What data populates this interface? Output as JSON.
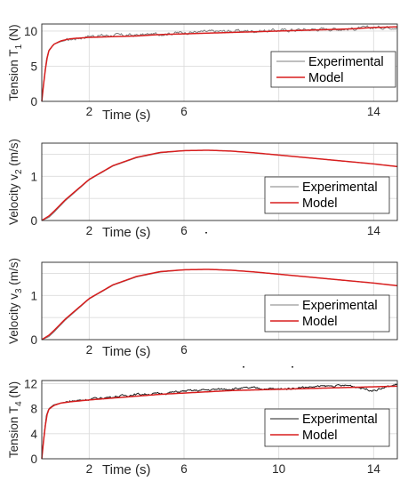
{
  "colors": {
    "experimental": "#7f7f7f",
    "experimental_dark": "#1e1e1e",
    "model": "#d81e1e",
    "axes": "#262626",
    "grid": "#dcdcdc"
  },
  "chart_data": [
    {
      "type": "line",
      "ylabel_main": "Tension T",
      "ylabel_sub": "1",
      "ylabel_unit": " (N)",
      "xlabel": "Time (s)",
      "xlim": [
        0,
        15
      ],
      "ylim": [
        0,
        11
      ],
      "xtick_labels": [
        {
          "x": 2,
          "label": "2"
        },
        {
          "x": 6,
          "label": "6"
        },
        {
          "x": 14,
          "label": "14"
        }
      ],
      "ytick_labels": [
        {
          "y": 0,
          "label": "0"
        },
        {
          "y": 5,
          "label": "5"
        },
        {
          "y": 10,
          "label": "10"
        }
      ],
      "xgrid": [
        2,
        6,
        10,
        14
      ],
      "ygrid": [
        5,
        10
      ],
      "legend": [
        "Experimental",
        "Model"
      ],
      "legend_position": "right",
      "series": [
        {
          "name": "Experimental",
          "style": "noisy-light",
          "x": [
            0,
            0.1,
            0.2,
            0.3,
            0.5,
            0.8,
            1.2,
            2,
            3,
            4,
            5,
            6,
            7,
            8,
            9,
            10,
            11,
            12,
            13,
            14,
            15
          ],
          "y": [
            0,
            3.4,
            6.0,
            7.3,
            8.1,
            8.5,
            8.8,
            9.3,
            9.4,
            9.4,
            9.6,
            9.8,
            9.9,
            10.0,
            10.0,
            10.1,
            10.2,
            10.3,
            10.3,
            10.5,
            10.6
          ]
        },
        {
          "name": "Model",
          "x": [
            0,
            0.1,
            0.2,
            0.3,
            0.5,
            0.8,
            1.2,
            2,
            3,
            4,
            5,
            6,
            7,
            8,
            9,
            10,
            11,
            12,
            13,
            14,
            15
          ],
          "y": [
            0,
            3.2,
            5.8,
            7.2,
            8.1,
            8.6,
            8.9,
            9.1,
            9.2,
            9.3,
            9.5,
            9.6,
            9.7,
            9.8,
            9.9,
            10.0,
            10.1,
            10.2,
            10.3,
            10.5,
            10.6
          ]
        }
      ]
    },
    {
      "type": "line",
      "ylabel_main": "Velocity v",
      "ylabel_sub": "2",
      "ylabel_unit": " (m/s)",
      "xlabel": "Time (s)",
      "xlim": [
        0,
        15
      ],
      "ylim": [
        0,
        1.75
      ],
      "xtick_labels": [
        {
          "x": 2,
          "label": "2"
        },
        {
          "x": 6,
          "label": "6"
        },
        {
          "x": 14,
          "label": "14"
        }
      ],
      "ytick_labels": [
        {
          "y": 0,
          "label": "0"
        },
        {
          "y": 1,
          "label": "1"
        }
      ],
      "xgrid": [
        2,
        6,
        10,
        14
      ],
      "ygrid": [
        0.5,
        1,
        1.5
      ],
      "legend": [
        "Experimental",
        "Model"
      ],
      "legend_position": "right",
      "series": [
        {
          "name": "Experimental",
          "x": [
            0,
            0.3,
            0.5,
            1,
            2,
            3,
            4,
            5,
            6,
            7,
            8,
            9,
            10,
            11,
            12,
            13,
            14,
            15
          ],
          "y": [
            0,
            0.07,
            0.17,
            0.45,
            0.92,
            1.23,
            1.42,
            1.53,
            1.58,
            1.59,
            1.57,
            1.53,
            1.48,
            1.43,
            1.38,
            1.33,
            1.28,
            1.22
          ]
        },
        {
          "name": "Model",
          "x": [
            0,
            0.3,
            0.5,
            1,
            2,
            3,
            4,
            5,
            6,
            7,
            8,
            9,
            10,
            11,
            12,
            13,
            14,
            15
          ],
          "y": [
            0,
            0.1,
            0.2,
            0.47,
            0.93,
            1.24,
            1.43,
            1.54,
            1.58,
            1.59,
            1.57,
            1.53,
            1.48,
            1.43,
            1.38,
            1.33,
            1.28,
            1.22
          ]
        }
      ]
    },
    {
      "type": "line",
      "ylabel_main": "Velocity v",
      "ylabel_sub": "3",
      "ylabel_unit": " (m/s)",
      "xlabel": "Time (s)",
      "xlim": [
        0,
        15
      ],
      "ylim": [
        0,
        1.75
      ],
      "xtick_labels": [
        {
          "x": 2,
          "label": "2"
        },
        {
          "x": 6,
          "label": "6"
        }
      ],
      "ytick_labels": [
        {
          "y": 0,
          "label": "0"
        },
        {
          "y": 1,
          "label": "1"
        }
      ],
      "xgrid": [
        2,
        6,
        10,
        14
      ],
      "ygrid": [
        0.5,
        1,
        1.5
      ],
      "legend": [
        "Experimental",
        "Model"
      ],
      "legend_position": "right",
      "series": [
        {
          "name": "Experimental",
          "x": [
            0,
            0.3,
            0.5,
            1,
            2,
            3,
            4,
            5,
            6,
            7,
            8,
            9,
            10,
            11,
            12,
            13,
            14,
            15
          ],
          "y": [
            0,
            0.07,
            0.17,
            0.45,
            0.92,
            1.23,
            1.42,
            1.53,
            1.58,
            1.59,
            1.57,
            1.53,
            1.48,
            1.43,
            1.38,
            1.33,
            1.28,
            1.22
          ]
        },
        {
          "name": "Model",
          "x": [
            0,
            0.3,
            0.5,
            1,
            2,
            3,
            4,
            5,
            6,
            7,
            8,
            9,
            10,
            11,
            12,
            13,
            14,
            15
          ],
          "y": [
            0,
            0.1,
            0.2,
            0.47,
            0.93,
            1.24,
            1.43,
            1.54,
            1.58,
            1.59,
            1.57,
            1.53,
            1.48,
            1.43,
            1.38,
            1.33,
            1.28,
            1.22
          ]
        }
      ]
    },
    {
      "type": "line",
      "ylabel_main": "Tension T",
      "ylabel_sub": "4",
      "ylabel_unit": " (N)",
      "xlabel": "Time (s)",
      "xlim": [
        0,
        15
      ],
      "ylim": [
        0,
        12.5
      ],
      "xtick_labels": [
        {
          "x": 2,
          "label": "2"
        },
        {
          "x": 6,
          "label": "6"
        },
        {
          "x": 10,
          "label": "10"
        },
        {
          "x": 14,
          "label": "14"
        }
      ],
      "ytick_labels": [
        {
          "y": 0,
          "label": "0"
        },
        {
          "y": 4,
          "label": "4"
        },
        {
          "y": 8,
          "label": "8"
        },
        {
          "y": 12,
          "label": "12"
        }
      ],
      "xgrid": [
        2,
        6,
        10,
        14
      ],
      "ygrid": [
        4,
        8,
        12
      ],
      "legend": [
        "Experimental",
        "Model"
      ],
      "legend_position": "right",
      "series": [
        {
          "name": "Experimental",
          "style": "noisy-dark",
          "x": [
            0,
            0.1,
            0.2,
            0.3,
            0.5,
            0.8,
            1.2,
            2,
            3,
            4,
            5,
            6,
            7,
            8,
            9,
            10,
            11,
            12,
            13,
            14,
            15
          ],
          "y": [
            0,
            4.0,
            7.0,
            8.0,
            8.6,
            8.9,
            9.2,
            9.5,
            9.9,
            10.3,
            10.4,
            10.8,
            11.0,
            11.2,
            11.3,
            11.1,
            11.4,
            11.6,
            11.7,
            10.9,
            11.9
          ]
        },
        {
          "name": "Model",
          "x": [
            0,
            0.1,
            0.2,
            0.3,
            0.5,
            0.8,
            1.2,
            2,
            3,
            4,
            5,
            6,
            7,
            8,
            9,
            10,
            11,
            12,
            13,
            14,
            15
          ],
          "y": [
            0,
            3.8,
            6.8,
            7.9,
            8.5,
            8.9,
            9.1,
            9.4,
            9.7,
            10.0,
            10.3,
            10.5,
            10.7,
            10.9,
            11.0,
            11.1,
            11.2,
            11.3,
            11.4,
            11.5,
            11.6
          ]
        }
      ]
    }
  ]
}
